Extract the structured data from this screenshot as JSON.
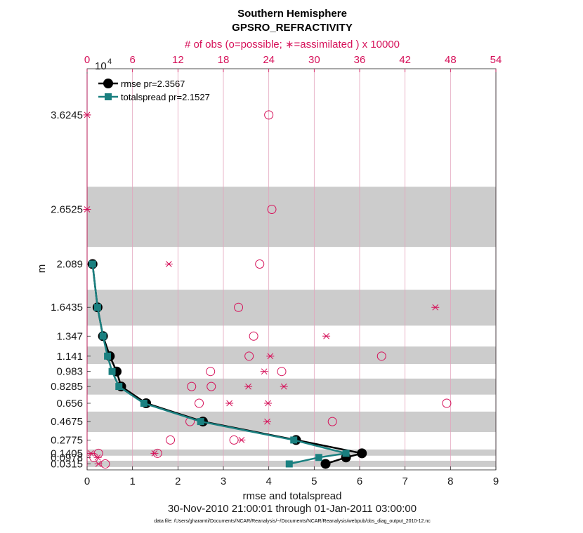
{
  "title": "Southern Hemisphere",
  "subtitle": "GPSRO_REFRACTIVITY",
  "top_axis_label": "# of obs (o=possible; ∗=assimilated ) x 10000",
  "exponent_base": "10",
  "exponent_power": "4",
  "date_range": "30-Nov-2010 21:00:01 through 01-Jan-2011 03:00:00",
  "data_file": "data file: /Users/gharamti/Documents/NCAR/Reanalysis/~/Documents/NCAR/Reanalysis/webpub/obs_diag_output_2010-12.nc",
  "colors": {
    "rmse": "#000000",
    "spread": "#1a8080",
    "obs": "#d6125a",
    "band": "#cccccc",
    "grid": "#e3a3bd"
  },
  "chart_data": {
    "type": "line",
    "xlabel": "rmse and totalspread",
    "ylabel": "m",
    "xlim": [
      0,
      9
    ],
    "x_ticks": [
      "0",
      "1",
      "2",
      "3",
      "4",
      "5",
      "6",
      "7",
      "8",
      "9"
    ],
    "ylim": [
      -0.03,
      4.1
    ],
    "levels": [
      0.0315,
      0.0978,
      0.1405,
      0.2775,
      0.4675,
      0.656,
      0.8285,
      0.983,
      1.141,
      1.347,
      1.6435,
      2.089,
      2.6525,
      3.6245
    ],
    "y_tick_labels": [
      "0.0315",
      "0.0978",
      "0.1405",
      "0.2775",
      "0.4675",
      "0.656",
      "0.8285",
      "0.983",
      "1.141",
      "1.347",
      "1.6435",
      "2.089",
      "2.6525",
      "3.6245"
    ],
    "bands": [
      [
        0.0,
        0.064
      ],
      [
        0.116,
        0.18
      ],
      [
        0.36,
        0.57
      ],
      [
        0.745,
        0.91
      ],
      [
        1.06,
        1.24
      ],
      [
        1.455,
        1.825
      ],
      [
        2.265,
        2.885
      ]
    ],
    "top_axis": {
      "lim": [
        0,
        54
      ],
      "ticks": [
        "0",
        "6",
        "12",
        "18",
        "24",
        "30",
        "36",
        "42",
        "48",
        "54"
      ]
    },
    "series": [
      {
        "name": "rmse",
        "legend": "rmse pr=2.3567",
        "x": [
          5.25,
          5.7,
          6.05,
          4.6,
          2.55,
          1.3,
          0.75,
          0.65,
          0.5,
          0.35,
          0.23,
          0.12
        ],
        "y": [
          0.0315,
          0.0978,
          0.1405,
          0.2775,
          0.4675,
          0.656,
          0.8285,
          0.983,
          1.141,
          1.347,
          1.6435,
          2.089
        ]
      },
      {
        "name": "totalspread",
        "legend": "totalspread pr=2.1527",
        "x": [
          4.45,
          5.1,
          5.7,
          4.55,
          2.5,
          1.25,
          0.7,
          0.55,
          0.45,
          0.35,
          0.23,
          0.12
        ],
        "y": [
          0.0315,
          0.0978,
          0.1405,
          0.2775,
          0.4675,
          0.656,
          0.8285,
          0.983,
          1.141,
          1.347,
          1.6435,
          2.089
        ]
      }
    ],
    "obs_possible": {
      "x": [
        2.4,
        0.9,
        1.5,
        9.3,
        11.0,
        13.6,
        14.8,
        16.4,
        25.7,
        21.4,
        22.0,
        20.0,
        22.8,
        24.4,
        24.0,
        19.4,
        32.4,
        47.5,
        13.8,
        16.3,
        38.9
      ],
      "y": [
        0.0315,
        0.0978,
        0.1405,
        0.1405,
        0.2775,
        0.4675,
        0.656,
        0.8285,
        0.983,
        1.141,
        1.347,
        1.6435,
        2.089,
        2.6525,
        3.6245,
        0.2775,
        0.4675,
        0.656,
        0.8285,
        0.983,
        1.141
      ]
    },
    "obs_assimilated": {
      "x": [
        1.5,
        1.4,
        0.5,
        8.9,
        20.4,
        23.8,
        23.9,
        26.0,
        24.2,
        31.6,
        46.0,
        10.8,
        0.0,
        0.0,
        23.4,
        21.3,
        18.8
      ],
      "y": [
        0.0315,
        0.0978,
        0.1405,
        0.1405,
        0.2775,
        0.4675,
        0.656,
        0.8285,
        1.141,
        1.347,
        1.6435,
        2.089,
        2.6525,
        3.6245,
        0.983,
        0.8285,
        0.656
      ]
    }
  }
}
